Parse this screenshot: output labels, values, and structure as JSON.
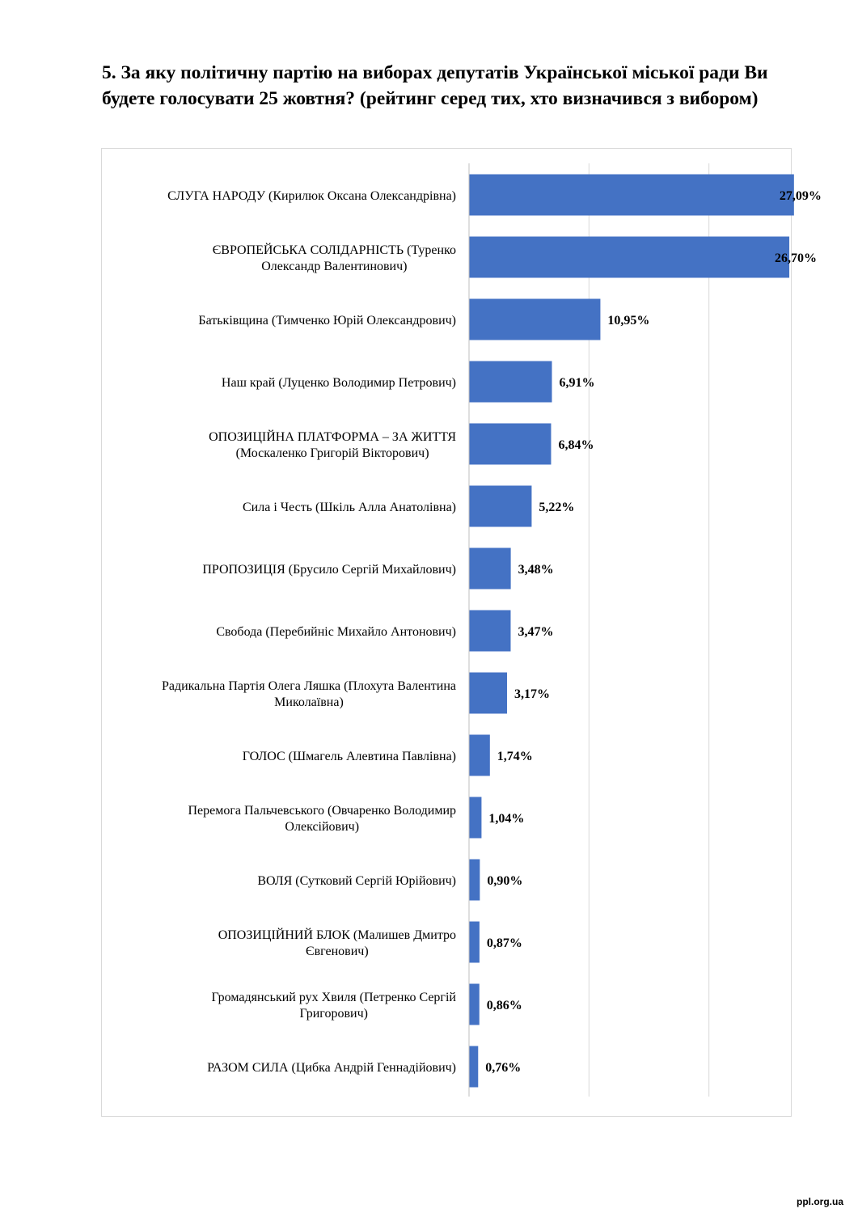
{
  "title": "5. За яку політичну партію на виборах депутатів Української міської ради Ви будете голосувати 25 жовтня? (рейтинг серед тих, хто визначився з вибором)",
  "watermark": "ppl.org.ua",
  "chart_data": {
    "type": "bar",
    "orientation": "horizontal",
    "bar_color": "#4472C4",
    "grid": true,
    "xlim": [
      0,
      30
    ],
    "categories": [
      [
        "СЛУГА НАРОДУ (Кирилюк Оксана Олександрівна)"
      ],
      [
        "ЄВРОПЕЙСЬКА СОЛІДАРНІСТЬ (Туренко",
        "Олександр Валентинович)"
      ],
      [
        "Батьківщина (Тимченко Юрій Олександрович)"
      ],
      [
        "Наш край (Луценко Володимир Петрович)"
      ],
      [
        "ОПОЗИЦІЙНА ПЛАТФОРМА – ЗА ЖИТТЯ",
        "(Москаленко Григорій Вікторович)"
      ],
      [
        "Сила і Честь (Шкіль Алла Анатолівна)"
      ],
      [
        "ПРОПОЗИЦІЯ (Брусило Сергій Михайлович)"
      ],
      [
        "Свобода (Перебийніс Михайло Антонович)"
      ],
      [
        "Радикальна Партія Олега Ляшка (Плохута Валентина",
        "Миколаївна)"
      ],
      [
        "ГОЛОС (Шмагель Алевтина Павлівна)"
      ],
      [
        "Перемога Пальчевського (Овчаренко Володимир",
        "Олексійович)"
      ],
      [
        "ВОЛЯ (Сутковий Сергій Юрійович)"
      ],
      [
        "ОПОЗИЦІЙНИЙ БЛОК (Малишев Дмитро",
        "Євгенович)"
      ],
      [
        "Громадянський рух Хвиля (Петренко Сергій",
        "Григорович)"
      ],
      [
        "РАЗОМ СИЛА (Цибка Андрій Геннадійович)"
      ]
    ],
    "values": [
      27.09,
      26.7,
      10.95,
      6.91,
      6.84,
      5.22,
      3.48,
      3.47,
      3.17,
      1.74,
      1.04,
      0.9,
      0.87,
      0.86,
      0.76
    ],
    "data_labels": [
      "27,09%",
      "26,70%",
      "10,95%",
      "6,91%",
      "6,84%",
      "5,22%",
      "3,48%",
      "3,47%",
      "3,17%",
      "1,74%",
      "1,04%",
      "0,90%",
      "0,87%",
      "0,86%",
      "0,76%"
    ]
  }
}
